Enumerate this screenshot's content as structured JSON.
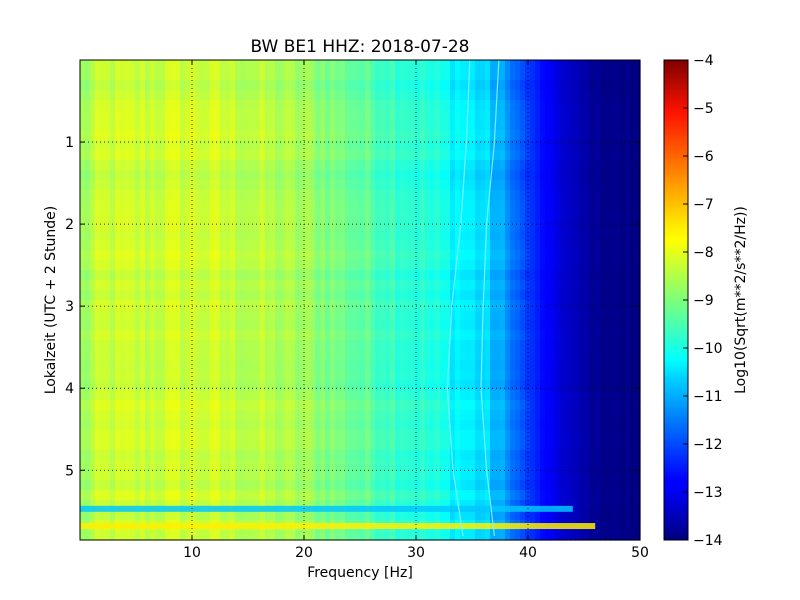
{
  "chart_data": {
    "type": "heatmap",
    "title": "BW BE1 HHZ: 2018-07-28",
    "xlabel": "Frequency [Hz]",
    "ylabel": "Lokalzeit (UTC + 2 Stunde)",
    "xlim": [
      0,
      50
    ],
    "ylim": [
      5.85,
      0
    ],
    "x_ticks": [
      10,
      20,
      30,
      40,
      50
    ],
    "y_ticks": [
      1,
      2,
      3,
      4,
      5
    ],
    "grid": true,
    "colormap": "jet",
    "colorbar": {
      "label": "Log10(Sqrt(m**2/s**2/Hz))",
      "range": [
        -14,
        -4
      ],
      "ticks": [
        -4,
        -5,
        -6,
        -7,
        -8,
        -9,
        -10,
        -11,
        -12,
        -13,
        -14
      ]
    },
    "frequency_profile_hz": [
      0,
      2,
      5,
      10,
      15,
      20,
      25,
      30,
      33,
      36,
      38,
      40,
      42,
      44,
      46,
      50
    ],
    "frequency_profile_level": [
      -8.8,
      -8.3,
      -8.3,
      -8.2,
      -8.4,
      -8.7,
      -9.3,
      -9.8,
      -10.2,
      -10.6,
      -11.3,
      -12.2,
      -12.9,
      -13.4,
      -13.8,
      -14
    ],
    "line_features": [
      {
        "label": "narrow spectral line",
        "freq_hz": [
          34.8,
          34.5,
          34.0,
          33.2,
          32.8,
          33.3,
          34.2
        ],
        "time_h": [
          0.0,
          1.0,
          2.0,
          3.0,
          4.0,
          5.0,
          5.8
        ]
      },
      {
        "label": "narrow spectral line",
        "freq_hz": [
          37.4,
          37.0,
          36.3,
          36.0,
          35.8,
          36.3,
          37.0
        ],
        "time_h": [
          0.0,
          1.0,
          2.0,
          3.0,
          4.0,
          5.0,
          5.8
        ]
      }
    ],
    "broadband_events": [
      {
        "time_h": 5.47,
        "max_freq_hz": 44,
        "level": -10.8
      },
      {
        "time_h": 5.68,
        "max_freq_hz": 46,
        "level": -7.6
      }
    ]
  }
}
